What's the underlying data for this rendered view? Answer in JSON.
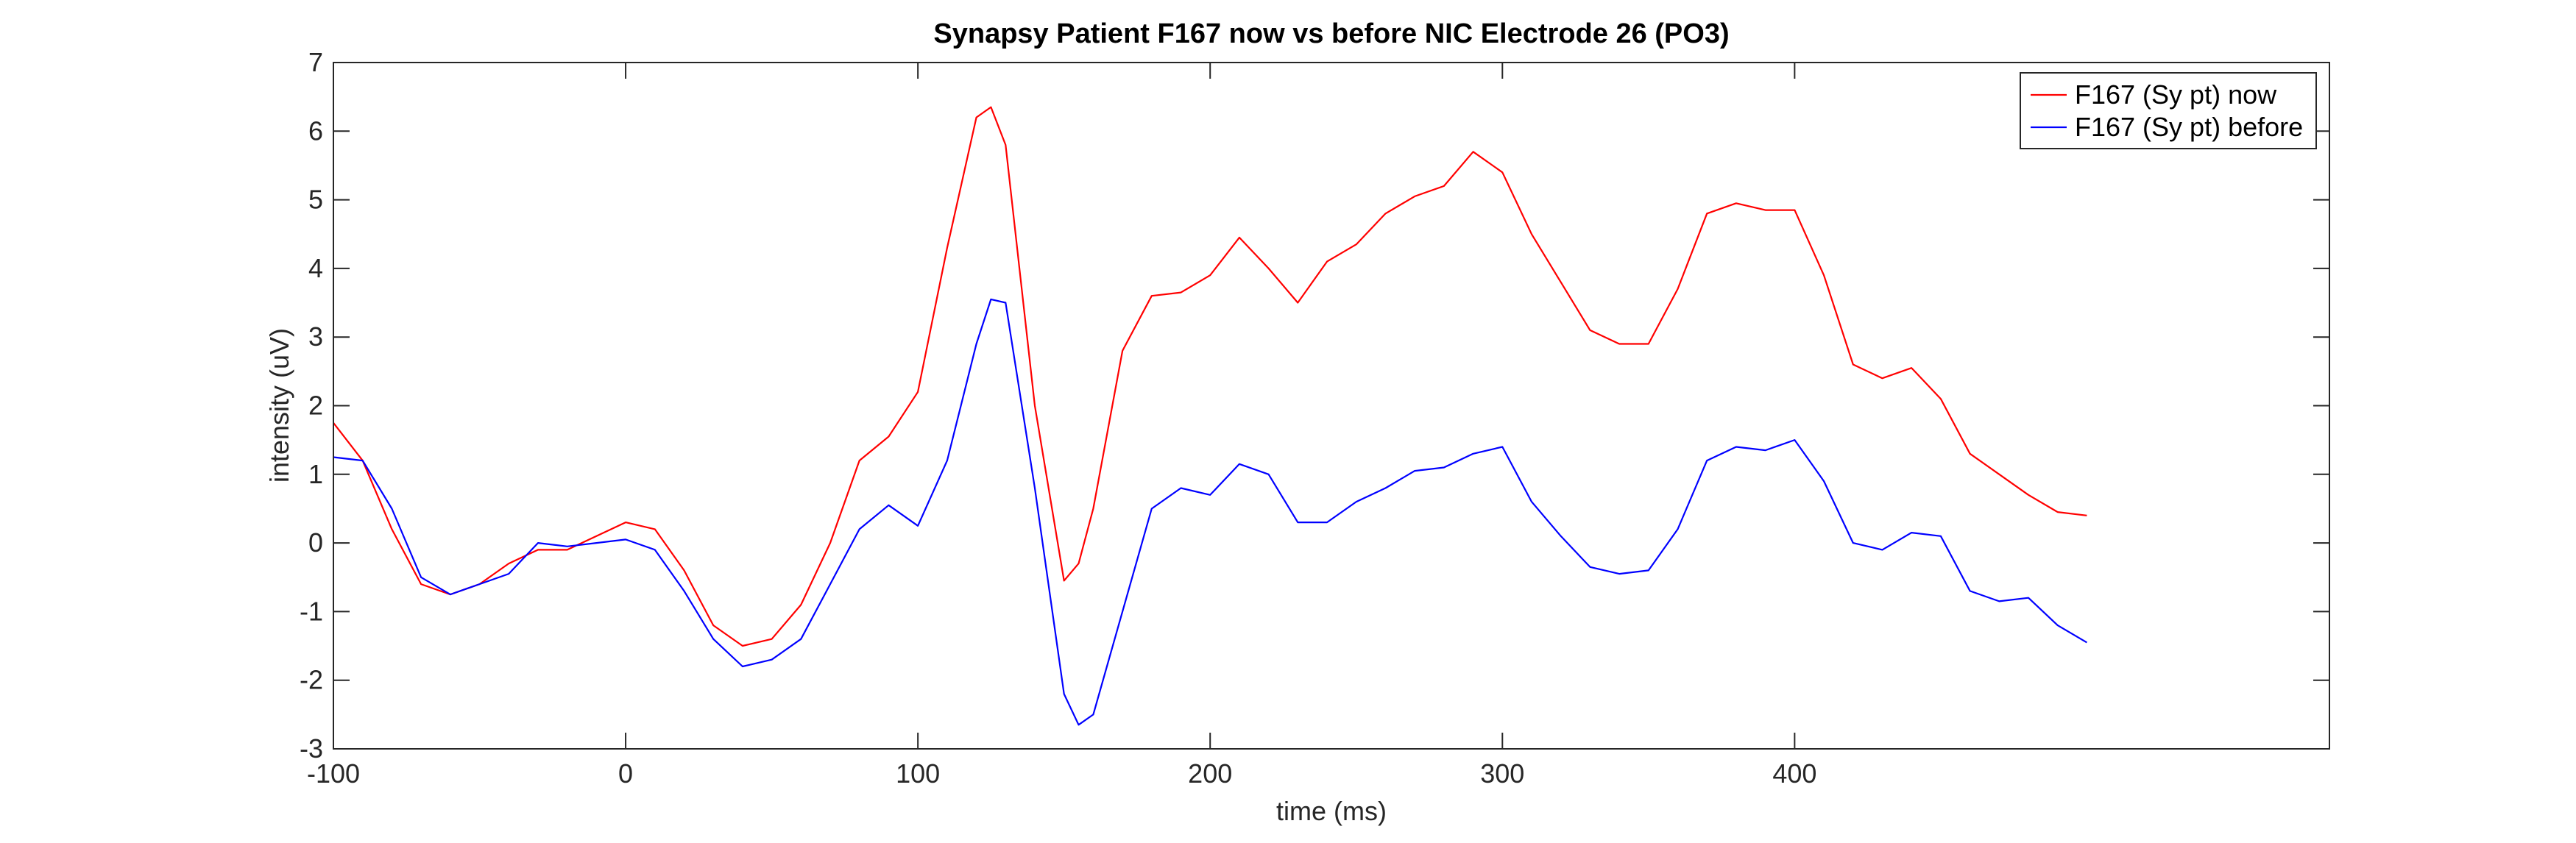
{
  "chart_data": {
    "type": "line",
    "title": "Synapsy Patient F167 now vs before NIC Electrode 26 (PO3)",
    "xlabel": "time (ms)",
    "ylabel": "intensity (uV)",
    "x": [
      -100,
      -90,
      -80,
      -70,
      -60,
      -50,
      -40,
      -30,
      -20,
      -10,
      0,
      10,
      20,
      30,
      40,
      50,
      60,
      70,
      80,
      90,
      100,
      110,
      120,
      125,
      130,
      140,
      150,
      155,
      160,
      170,
      180,
      190,
      200,
      210,
      220,
      230,
      240,
      250,
      260,
      270,
      280,
      290,
      300,
      310,
      320,
      330,
      340,
      350,
      360,
      370,
      380,
      390,
      400,
      410,
      420,
      430,
      440,
      450,
      460,
      470,
      480,
      490,
      500
    ],
    "series": [
      {
        "name": "F167 (Sy pt) now",
        "color": "#ff0000",
        "values": [
          1.75,
          1.2,
          0.2,
          -0.6,
          -0.75,
          -0.6,
          -0.3,
          -0.1,
          -0.1,
          0.1,
          0.3,
          0.2,
          -0.4,
          -1.2,
          -1.5,
          -1.4,
          -0.9,
          0.0,
          1.2,
          1.55,
          2.2,
          4.3,
          6.2,
          6.35,
          5.8,
          2.0,
          -0.55,
          -0.3,
          0.5,
          2.8,
          3.6,
          3.65,
          3.9,
          4.45,
          4.0,
          3.5,
          4.1,
          4.35,
          4.8,
          5.05,
          5.2,
          5.7,
          5.4,
          4.5,
          3.8,
          3.1,
          2.9,
          2.9,
          3.7,
          4.8,
          4.95,
          4.85,
          4.85,
          3.9,
          2.6,
          2.4,
          2.55,
          2.1,
          1.3,
          1.0,
          0.7,
          0.45,
          0.4
        ]
      },
      {
        "name": "F167 (Sy pt) before",
        "color": "#0000ff",
        "values": [
          1.25,
          1.2,
          0.5,
          -0.5,
          -0.75,
          -0.6,
          -0.45,
          0.0,
          -0.05,
          0.0,
          0.05,
          -0.1,
          -0.7,
          -1.4,
          -1.8,
          -1.7,
          -1.4,
          -0.6,
          0.2,
          0.55,
          0.25,
          1.2,
          2.9,
          3.55,
          3.5,
          0.8,
          -2.2,
          -2.65,
          -2.5,
          -1.0,
          0.5,
          0.8,
          0.7,
          1.15,
          1.0,
          0.3,
          0.3,
          0.6,
          0.8,
          1.05,
          1.1,
          1.3,
          1.4,
          0.6,
          0.1,
          -0.35,
          -0.45,
          -0.4,
          0.2,
          1.2,
          1.4,
          1.35,
          1.5,
          0.9,
          0.0,
          -0.1,
          0.15,
          0.1,
          -0.7,
          -0.85,
          -0.8,
          -1.2,
          -1.45
        ]
      }
    ],
    "xlim": [
      -100,
      583
    ],
    "xticks": [
      -100,
      0,
      100,
      200,
      300,
      400
    ],
    "ylim": [
      -3,
      7
    ],
    "yticks": [
      -3,
      -2,
      -1,
      0,
      1,
      2,
      3,
      4,
      5,
      6,
      7
    ],
    "legend": "upper right"
  }
}
